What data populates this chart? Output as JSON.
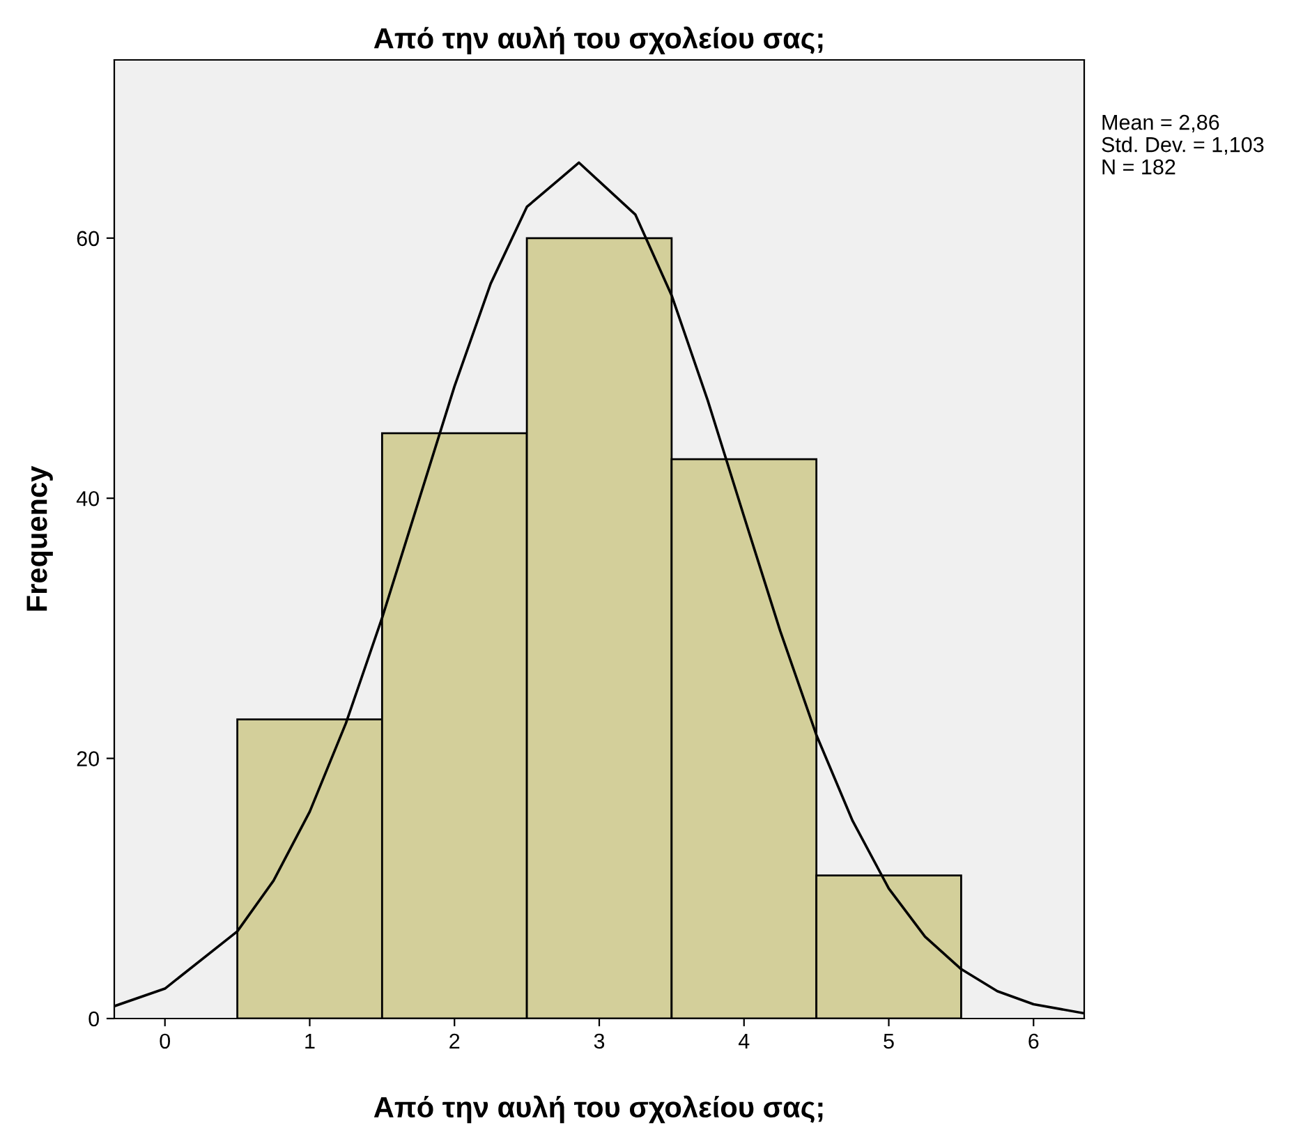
{
  "chart_data": {
    "type": "histogram",
    "title": "Από την αυλή του σχολείου σας;",
    "xlabel": "Από την αυλή του σχολείου σας;",
    "ylabel": "Frequency",
    "bins": [
      0.5,
      1.5,
      2.5,
      3.5,
      4.5,
      5.5
    ],
    "values": [
      23,
      45,
      60,
      43,
      11
    ],
    "color": "#d3cf9a",
    "series": [
      {
        "type": "line",
        "color": "#000000",
        "x": [
          -0.35,
          0,
          0.5,
          0.75,
          1,
          1.25,
          1.5,
          1.75,
          2,
          2.25,
          2.5,
          2.86,
          3.25,
          3.5,
          3.75,
          4,
          4.25,
          4.5,
          4.75,
          5,
          5.25,
          5.5,
          5.75,
          6,
          6.35
        ],
        "values": [
          0.95,
          2.3,
          6.7,
          10.6,
          15.9,
          22.7,
          30.8,
          39.7,
          48.6,
          56.5,
          62.4,
          65.8,
          61.8,
          55.6,
          47.5,
          38.6,
          29.8,
          21.8,
          15.2,
          10.0,
          6.3,
          3.8,
          2.1,
          1.1,
          0.4
        ]
      }
    ],
    "xlim": [
      -0.35,
      6.35
    ],
    "ylim": [
      0,
      73.7
    ],
    "xticks": [
      0,
      1,
      2,
      3,
      4,
      5,
      6
    ],
    "yticks": [
      0,
      20,
      40,
      60
    ],
    "grid": false,
    "annotations": [
      "Mean = 2,86",
      "Std. Dev. = 1,103",
      "N = 182"
    ]
  }
}
